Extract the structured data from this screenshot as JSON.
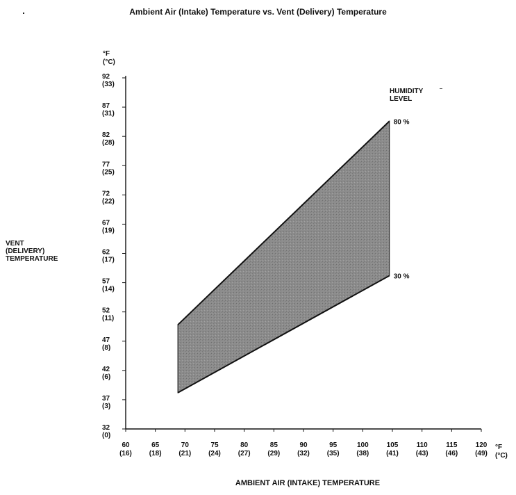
{
  "chart_data": {
    "type": "area",
    "title": "Ambient Air (Intake) Temperature vs. Vent (Delivery) Temperature",
    "xlabel": "AMBIENT AIR (INTAKE) TEMPERATURE",
    "ylabel": [
      "VENT",
      "(DELIVERY)",
      "TEMPERATURE"
    ],
    "x_unit": [
      "°F",
      "(°C)"
    ],
    "y_unit": [
      "°F",
      "(°C)"
    ],
    "xlim": [
      60,
      120
    ],
    "ylim": [
      32,
      92
    ],
    "x_ticks": [
      {
        "f": "60",
        "c": "(16)"
      },
      {
        "f": "65",
        "c": "(18)"
      },
      {
        "f": "70",
        "c": "(21)"
      },
      {
        "f": "75",
        "c": "(24)"
      },
      {
        "f": "80",
        "c": "(27)"
      },
      {
        "f": "85",
        "c": "(29)"
      },
      {
        "f": "90",
        "c": "(32)"
      },
      {
        "f": "95",
        "c": "(35)"
      },
      {
        "f": "100",
        "c": "(38)"
      },
      {
        "f": "105",
        "c": "(41)"
      },
      {
        "f": "110",
        "c": "(43)"
      },
      {
        "f": "115",
        "c": "(46)"
      },
      {
        "f": "120",
        "c": "(49)"
      }
    ],
    "y_ticks": [
      {
        "f": "32",
        "c": "(0)"
      },
      {
        "f": "37",
        "c": "(3)"
      },
      {
        "f": "42",
        "c": "(6)"
      },
      {
        "f": "47",
        "c": "(8)"
      },
      {
        "f": "52",
        "c": "(11)"
      },
      {
        "f": "57",
        "c": "(14)"
      },
      {
        "f": "62",
        "c": "(17)"
      },
      {
        "f": "67",
        "c": "(19)"
      },
      {
        "f": "72",
        "c": "(22)"
      },
      {
        "f": "77",
        "c": "(25)"
      },
      {
        "f": "82",
        "c": "(28)"
      },
      {
        "f": "87",
        "c": "(31)"
      },
      {
        "f": "92",
        "c": "(33)"
      }
    ],
    "series": [
      {
        "name": "80 %",
        "x": [
          68.8,
          104.5
        ],
        "y": [
          49.8,
          84.6
        ]
      },
      {
        "name": "30 %",
        "x": [
          68.8,
          104.5
        ],
        "y": [
          38.2,
          58.2
        ]
      }
    ],
    "legend_title": [
      "HUMIDITY",
      "LEVEL"
    ],
    "band_color": "#8a8a8a",
    "line_color": "#111111"
  }
}
